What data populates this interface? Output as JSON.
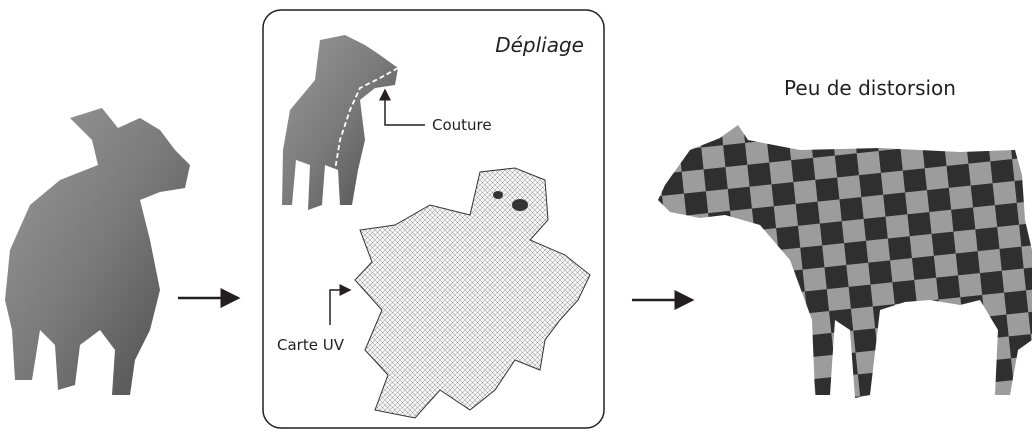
{
  "unfolding_panel": {
    "title": "Dépliage",
    "seam_label": "Couture",
    "uv_map_label": "Carte UV"
  },
  "result": {
    "caption": "Peu de distorsion"
  }
}
